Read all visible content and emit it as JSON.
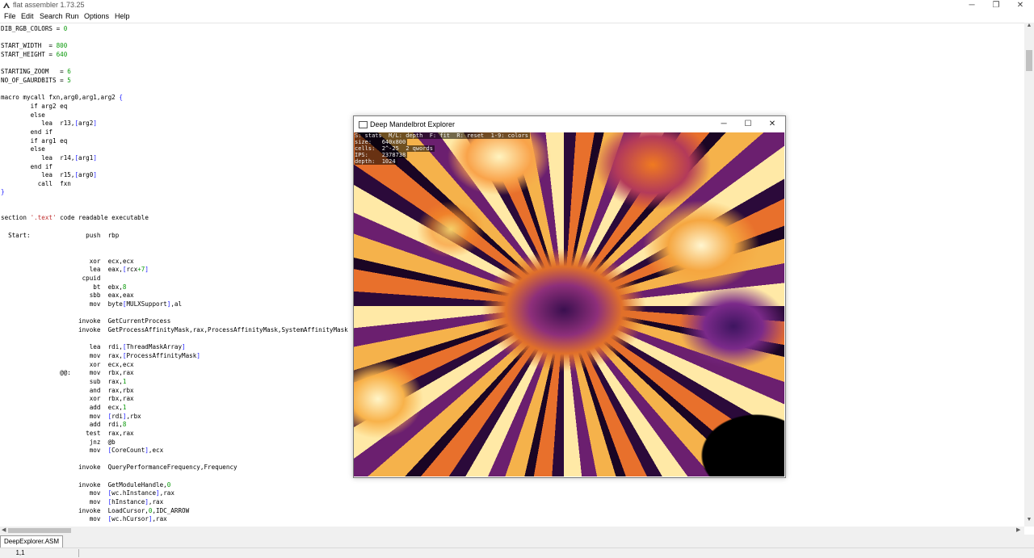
{
  "app": {
    "title": "flat assembler 1.73.25",
    "window_controls": {
      "minimize": "─",
      "maximize": "❐",
      "close": "✕"
    }
  },
  "menubar": [
    "File",
    "Edit",
    "Search",
    "Run",
    "Options",
    "Help"
  ],
  "editor": {
    "lines": [
      [
        [
          "DIB_RGB_COLORS = ",
          ""
        ],
        [
          "0",
          "n"
        ]
      ],
      [],
      [
        [
          "START_WIDTH  = ",
          ""
        ],
        [
          "800",
          "n"
        ]
      ],
      [
        [
          "START_HEIGHT = ",
          ""
        ],
        [
          "640",
          "n"
        ]
      ],
      [],
      [
        [
          "STARTING_ZOOM   = ",
          ""
        ],
        [
          "6",
          "n"
        ]
      ],
      [
        [
          "NO_OF_GAURDBITS = ",
          ""
        ],
        [
          "5",
          "n"
        ]
      ],
      [],
      [
        [
          "macro mycall fxn,arg0,arg1,arg2 ",
          ""
        ],
        [
          "{",
          "b"
        ]
      ],
      [
        [
          "        if arg2 eq",
          ""
        ]
      ],
      [
        [
          "        else",
          ""
        ]
      ],
      [
        [
          "           lea  r13,",
          ""
        ],
        [
          "[",
          "b"
        ],
        [
          "arg2",
          ""
        ],
        [
          "]",
          "b"
        ]
      ],
      [
        [
          "        end if",
          ""
        ]
      ],
      [
        [
          "        if arg1 eq",
          ""
        ]
      ],
      [
        [
          "        else",
          ""
        ]
      ],
      [
        [
          "           lea  r14,",
          ""
        ],
        [
          "[",
          "b"
        ],
        [
          "arg1",
          ""
        ],
        [
          "]",
          "b"
        ]
      ],
      [
        [
          "        end if",
          ""
        ]
      ],
      [
        [
          "           lea  r15,",
          ""
        ],
        [
          "[",
          "b"
        ],
        [
          "arg0",
          ""
        ],
        [
          "]",
          "b"
        ]
      ],
      [
        [
          "          call  fxn",
          ""
        ]
      ],
      [
        [
          "}",
          "b"
        ]
      ],
      [],
      [],
      [
        [
          "section ",
          ""
        ],
        [
          "'.text'",
          "s"
        ],
        [
          " code readable executable",
          ""
        ]
      ],
      [],
      [
        [
          "  Start:               push  rbp",
          ""
        ]
      ],
      [],
      [],
      [
        [
          "                        xor  ecx,ecx",
          ""
        ]
      ],
      [
        [
          "                        lea  eax,",
          ""
        ],
        [
          "[",
          "b"
        ],
        [
          "rcx",
          ""
        ],
        [
          "+7",
          "n"
        ],
        [
          "]",
          "b"
        ]
      ],
      [
        [
          "                      cpuid",
          ""
        ]
      ],
      [
        [
          "                         bt  ebx,",
          ""
        ],
        [
          "8",
          "n"
        ]
      ],
      [
        [
          "                        sbb  eax,eax",
          ""
        ]
      ],
      [
        [
          "                        mov  byte",
          ""
        ],
        [
          "[",
          "b"
        ],
        [
          "MULXSupport",
          ""
        ],
        [
          "]",
          "b"
        ],
        [
          ",al",
          ""
        ]
      ],
      [],
      [
        [
          "                     invoke  GetCurrentProcess",
          ""
        ]
      ],
      [
        [
          "                     invoke  GetProcessAffinityMask,rax,ProcessAffinityMask,SystemAffinityMask",
          ""
        ]
      ],
      [],
      [
        [
          "                        lea  rdi,",
          ""
        ],
        [
          "[",
          "b"
        ],
        [
          "ThreadMaskArray",
          ""
        ],
        [
          "]",
          "b"
        ]
      ],
      [
        [
          "                        mov  rax,",
          ""
        ],
        [
          "[",
          "b"
        ],
        [
          "ProcessAffinityMask",
          ""
        ],
        [
          "]",
          "b"
        ]
      ],
      [
        [
          "                        xor  ecx,ecx",
          ""
        ]
      ],
      [
        [
          "                @@:     mov  rbx,rax",
          ""
        ]
      ],
      [
        [
          "                        sub  rax,",
          ""
        ],
        [
          "1",
          "n"
        ]
      ],
      [
        [
          "                        and  rax,rbx",
          ""
        ]
      ],
      [
        [
          "                        xor  rbx,rax",
          ""
        ]
      ],
      [
        [
          "                        add  ecx,",
          ""
        ],
        [
          "1",
          "n"
        ]
      ],
      [
        [
          "                        mov  ",
          ""
        ],
        [
          "[",
          "b"
        ],
        [
          "rdi",
          ""
        ],
        [
          "]",
          "b"
        ],
        [
          ",rbx",
          ""
        ]
      ],
      [
        [
          "                        add  rdi,",
          ""
        ],
        [
          "8",
          "n"
        ]
      ],
      [
        [
          "                       test  rax,rax",
          ""
        ]
      ],
      [
        [
          "                        jnz  @b",
          ""
        ]
      ],
      [
        [
          "                        mov  ",
          ""
        ],
        [
          "[",
          "b"
        ],
        [
          "CoreCount",
          ""
        ],
        [
          "]",
          "b"
        ],
        [
          ",ecx",
          ""
        ]
      ],
      [],
      [
        [
          "                     invoke  QueryPerformanceFrequency,Frequency",
          ""
        ]
      ],
      [],
      [
        [
          "                     invoke  GetModuleHandle,",
          ""
        ],
        [
          "0",
          "n"
        ]
      ],
      [
        [
          "                        mov  ",
          ""
        ],
        [
          "[",
          "b"
        ],
        [
          "wc.hInstance",
          ""
        ],
        [
          "]",
          "b"
        ],
        [
          ",rax",
          ""
        ]
      ],
      [
        [
          "                        mov  ",
          ""
        ],
        [
          "[",
          "b"
        ],
        [
          "hInstance",
          ""
        ],
        [
          "]",
          "b"
        ],
        [
          ",rax",
          ""
        ]
      ],
      [
        [
          "                     invoke  LoadCursor,",
          ""
        ],
        [
          "0",
          "n"
        ],
        [
          ",IDC_ARROW",
          ""
        ]
      ],
      [
        [
          "                        mov  ",
          ""
        ],
        [
          "[",
          "b"
        ],
        [
          "wc.hCursor",
          ""
        ],
        [
          "]",
          "b"
        ],
        [
          ",rax",
          ""
        ]
      ]
    ]
  },
  "tabs": [
    {
      "label": "DeepExplorer.ASM",
      "active": true
    }
  ],
  "status": {
    "position": "1,1"
  },
  "explorer_window": {
    "title": "Deep Mandelbrot Explorer",
    "controls": {
      "minimize": "─",
      "maximize": "☐",
      "close": "✕"
    },
    "overlay": [
      "S: stats  M/L: depth  F: fit  R: reset  1-9: colors",
      "size:   640x800",
      "cells:  2^-25  2 qwords",
      "IPS:    2378738",
      "depth:  1024"
    ],
    "colors": {
      "dark": "#1a0524",
      "purple": "#6b1f6f",
      "orange": "#e8702c",
      "yellow": "#ffe9a6"
    }
  }
}
